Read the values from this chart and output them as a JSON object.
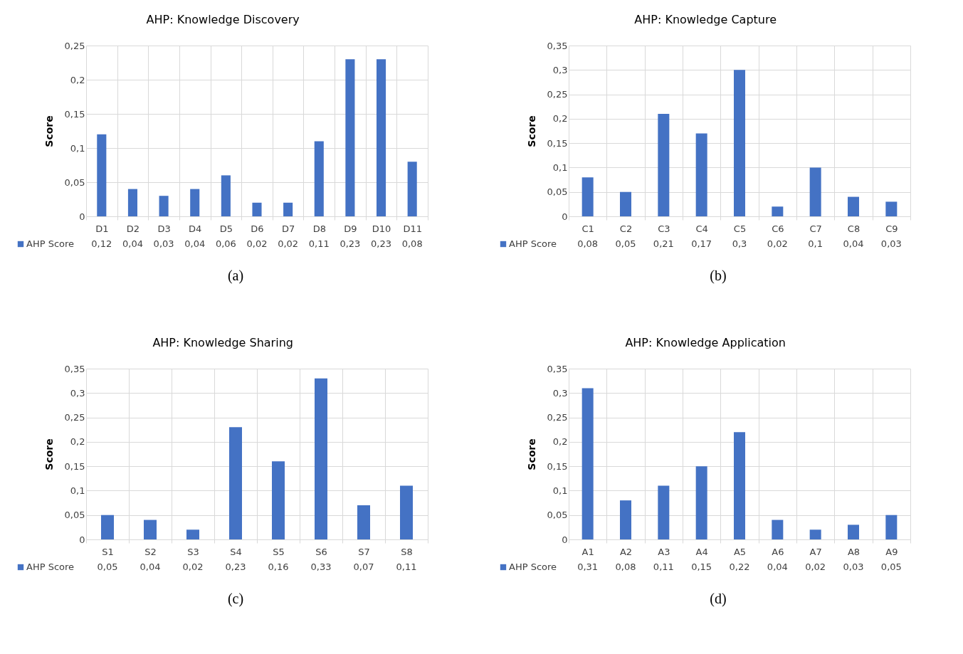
{
  "chart_data": [
    {
      "type": "bar",
      "title": "AHP: Knowledge Discovery",
      "ylabel": "Score",
      "categories": [
        "D1",
        "D2",
        "D3",
        "D4",
        "D5",
        "D6",
        "D7",
        "D8",
        "D9",
        "D10",
        "D11"
      ],
      "series": [
        {
          "name": "AHP Score",
          "color": "#4472c4",
          "values": [
            0.12,
            0.04,
            0.03,
            0.04,
            0.06,
            0.02,
            0.02,
            0.11,
            0.23,
            0.23,
            0.08
          ],
          "value_labels": [
            "0,12",
            "0,04",
            "0,03",
            "0,04",
            "0,06",
            "0,02",
            "0,02",
            "0,11",
            "0,23",
            "0,23",
            "0,08"
          ]
        }
      ],
      "ylim": [
        0,
        0.25
      ],
      "yticks": [
        {
          "value": 0,
          "label": "0"
        },
        {
          "value": 0.05,
          "label": "0,05"
        },
        {
          "value": 0.1,
          "label": "0,1"
        },
        {
          "value": 0.15,
          "label": "0,15"
        },
        {
          "value": 0.2,
          "label": "0,2"
        },
        {
          "value": 0.25,
          "label": "0,25"
        }
      ],
      "grid": true,
      "legend": "bottom left",
      "annotations": [
        "(a)"
      ]
    },
    {
      "type": "bar",
      "title": "AHP: Knowledge Capture",
      "ylabel": "Score",
      "categories": [
        "C1",
        "C2",
        "C3",
        "C4",
        "C5",
        "C6",
        "C7",
        "C8",
        "C9"
      ],
      "series": [
        {
          "name": "AHP Score",
          "color": "#4472c4",
          "values": [
            0.08,
            0.05,
            0.21,
            0.17,
            0.3,
            0.02,
            0.1,
            0.04,
            0.03
          ],
          "value_labels": [
            "0,08",
            "0,05",
            "0,21",
            "0,17",
            "0,3",
            "0,02",
            "0,1",
            "0,04",
            "0,03"
          ]
        }
      ],
      "ylim": [
        0,
        0.35
      ],
      "yticks": [
        {
          "value": 0,
          "label": "0"
        },
        {
          "value": 0.05,
          "label": "0,05"
        },
        {
          "value": 0.1,
          "label": "0,1"
        },
        {
          "value": 0.15,
          "label": "0,15"
        },
        {
          "value": 0.2,
          "label": "0,2"
        },
        {
          "value": 0.25,
          "label": "0,25"
        },
        {
          "value": 0.3,
          "label": "0,3"
        },
        {
          "value": 0.35,
          "label": "0,35"
        }
      ],
      "grid": true,
      "legend": "bottom left",
      "annotations": [
        "(b)"
      ]
    },
    {
      "type": "bar",
      "title": "AHP: Knowledge Sharing",
      "ylabel": "Score",
      "categories": [
        "S1",
        "S2",
        "S3",
        "S4",
        "S5",
        "S6",
        "S7",
        "S8"
      ],
      "series": [
        {
          "name": "AHP Score",
          "color": "#4472c4",
          "values": [
            0.05,
            0.04,
            0.02,
            0.23,
            0.16,
            0.33,
            0.07,
            0.11
          ],
          "value_labels": [
            "0,05",
            "0,04",
            "0,02",
            "0,23",
            "0,16",
            "0,33",
            "0,07",
            "0,11"
          ]
        }
      ],
      "ylim": [
        0,
        0.35
      ],
      "yticks": [
        {
          "value": 0,
          "label": "0"
        },
        {
          "value": 0.05,
          "label": "0,05"
        },
        {
          "value": 0.1,
          "label": "0,1"
        },
        {
          "value": 0.15,
          "label": "0,15"
        },
        {
          "value": 0.2,
          "label": "0,2"
        },
        {
          "value": 0.25,
          "label": "0,25"
        },
        {
          "value": 0.3,
          "label": "0,3"
        },
        {
          "value": 0.35,
          "label": "0,35"
        }
      ],
      "grid": true,
      "legend": "bottom left",
      "annotations": [
        "(c)"
      ]
    },
    {
      "type": "bar",
      "title": "AHP: Knowledge Application",
      "ylabel": "Score",
      "categories": [
        "A1",
        "A2",
        "A3",
        "A4",
        "A5",
        "A6",
        "A7",
        "A8",
        "A9"
      ],
      "series": [
        {
          "name": "AHP Score",
          "color": "#4472c4",
          "values": [
            0.31,
            0.08,
            0.11,
            0.15,
            0.22,
            0.04,
            0.02,
            0.03,
            0.05
          ],
          "value_labels": [
            "0,31",
            "0,08",
            "0,11",
            "0,15",
            "0,22",
            "0,04",
            "0,02",
            "0,03",
            "0,05"
          ]
        }
      ],
      "ylim": [
        0,
        0.35
      ],
      "yticks": [
        {
          "value": 0,
          "label": "0"
        },
        {
          "value": 0.05,
          "label": "0,05"
        },
        {
          "value": 0.1,
          "label": "0,1"
        },
        {
          "value": 0.15,
          "label": "0,15"
        },
        {
          "value": 0.2,
          "label": "0,2"
        },
        {
          "value": 0.25,
          "label": "0,25"
        },
        {
          "value": 0.3,
          "label": "0,3"
        },
        {
          "value": 0.35,
          "label": "0,35"
        }
      ],
      "grid": true,
      "legend": "bottom left",
      "annotations": [
        "(d)"
      ]
    }
  ]
}
